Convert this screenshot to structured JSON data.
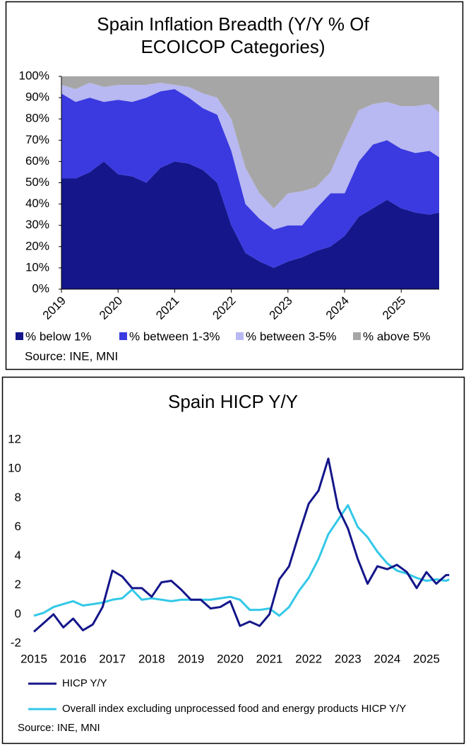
{
  "chart_data": [
    {
      "type": "stacked-area",
      "title": "Spain Inflation Breadth (Y/Y % Of ECOICOP Categories)",
      "source": "Source: INE, MNI",
      "x": [
        2019,
        2019.25,
        2019.5,
        2019.75,
        2020,
        2020.25,
        2020.5,
        2020.75,
        2021,
        2021.25,
        2021.5,
        2021.75,
        2022,
        2022.25,
        2022.5,
        2022.75,
        2023,
        2023.25,
        2023.5,
        2023.75,
        2024,
        2024.25,
        2024.5,
        2024.75,
        2025,
        2025.25,
        2025.5,
        2025.67
      ],
      "xlim": [
        2019,
        2025.67
      ],
      "xticks": [
        2019,
        2020,
        2021,
        2022,
        2023,
        2024,
        2025
      ],
      "ylim": [
        0,
        100
      ],
      "yticks": [
        {
          "value": 0,
          "label": "0%"
        },
        {
          "value": 10,
          "label": "10%"
        },
        {
          "value": 20,
          "label": "20%"
        },
        {
          "value": 30,
          "label": "30%"
        },
        {
          "value": 40,
          "label": "40%"
        },
        {
          "value": 50,
          "label": "50%"
        },
        {
          "value": 60,
          "label": "60%"
        },
        {
          "value": 70,
          "label": "70%"
        },
        {
          "value": 80,
          "label": "80%"
        },
        {
          "value": 90,
          "label": "90%"
        },
        {
          "value": 100,
          "label": "100%"
        }
      ],
      "series": [
        {
          "name": "% below 1%",
          "color": "#14168a",
          "values": [
            52,
            52,
            55,
            60,
            54,
            53,
            50,
            57,
            60,
            59,
            56,
            50,
            30,
            17,
            13,
            10,
            13,
            15,
            18,
            20,
            25,
            34,
            38,
            42,
            38,
            36,
            35,
            36
          ]
        },
        {
          "name": "% between 1-3%",
          "color": "#3a3ae0",
          "values": [
            40,
            36,
            35,
            28,
            35,
            35,
            40,
            36,
            34,
            31,
            29,
            32,
            35,
            23,
            20,
            18,
            17,
            15,
            20,
            25,
            20,
            26,
            30,
            28,
            28,
            28,
            30,
            26
          ]
        },
        {
          "name": "% between 3-5%",
          "color": "#b8b8f2",
          "values": [
            4,
            6,
            7,
            7,
            7,
            8,
            6,
            4,
            2,
            5,
            7,
            8,
            15,
            17,
            12,
            10,
            15,
            16,
            10,
            10,
            25,
            24,
            19,
            18,
            20,
            22,
            22,
            21
          ]
        },
        {
          "name": "% above 5%",
          "color": "#a6a6a6",
          "values": [
            4,
            6,
            3,
            5,
            4,
            4,
            4,
            3,
            4,
            5,
            8,
            10,
            20,
            43,
            55,
            62,
            55,
            54,
            52,
            45,
            30,
            16,
            13,
            12,
            14,
            14,
            13,
            17
          ]
        }
      ]
    },
    {
      "type": "line",
      "title": "Spain HICP Y/Y",
      "source": "Source: INE, MNI",
      "x": [
        2015,
        2015.25,
        2015.5,
        2015.75,
        2016,
        2016.25,
        2016.5,
        2016.75,
        2017,
        2017.25,
        2017.5,
        2017.75,
        2018,
        2018.25,
        2018.5,
        2018.75,
        2019,
        2019.25,
        2019.5,
        2019.75,
        2020,
        2020.25,
        2020.5,
        2020.75,
        2021,
        2021.25,
        2021.5,
        2021.75,
        2022,
        2022.25,
        2022.5,
        2022.75,
        2023,
        2023.25,
        2023.5,
        2023.75,
        2024,
        2024.25,
        2024.5,
        2024.75,
        2025,
        2025.25,
        2025.5,
        2025.58
      ],
      "xlim": [
        2015,
        2025.6
      ],
      "xticks": [
        2015,
        2016,
        2017,
        2018,
        2019,
        2020,
        2021,
        2022,
        2023,
        2024,
        2025
      ],
      "ylim": [
        -2,
        12
      ],
      "yticks": [
        -2,
        0,
        2,
        4,
        6,
        8,
        10,
        12
      ],
      "series": [
        {
          "name": "HICP Y/Y",
          "color": "#14168a",
          "values": [
            -1.2,
            -0.6,
            0.0,
            -0.9,
            -0.3,
            -1.1,
            -0.7,
            0.5,
            3.0,
            2.6,
            1.8,
            1.8,
            1.2,
            2.2,
            2.3,
            1.7,
            1.0,
            1.0,
            0.4,
            0.5,
            0.9,
            -0.8,
            -0.5,
            -0.8,
            0.0,
            2.4,
            3.3,
            5.5,
            7.6,
            8.5,
            10.7,
            7.3,
            5.9,
            3.8,
            2.1,
            3.3,
            3.1,
            3.4,
            2.9,
            1.8,
            2.9,
            2.1,
            2.7,
            2.7
          ]
        },
        {
          "name": "Overall index excluding unprocessed food and energy products HICP Y/Y",
          "color": "#33c8e8",
          "values": [
            -0.1,
            0.1,
            0.5,
            0.7,
            0.9,
            0.6,
            0.7,
            0.8,
            1.0,
            1.1,
            1.7,
            1.0,
            1.1,
            1.0,
            0.9,
            1.0,
            1.0,
            1.0,
            1.0,
            1.1,
            1.2,
            1.0,
            0.3,
            0.3,
            0.4,
            -0.1,
            0.5,
            1.6,
            2.5,
            3.8,
            5.5,
            6.5,
            7.5,
            6.0,
            5.3,
            4.3,
            3.5,
            3.0,
            2.8,
            2.5,
            2.3,
            2.4,
            2.3,
            2.4
          ]
        }
      ]
    }
  ]
}
